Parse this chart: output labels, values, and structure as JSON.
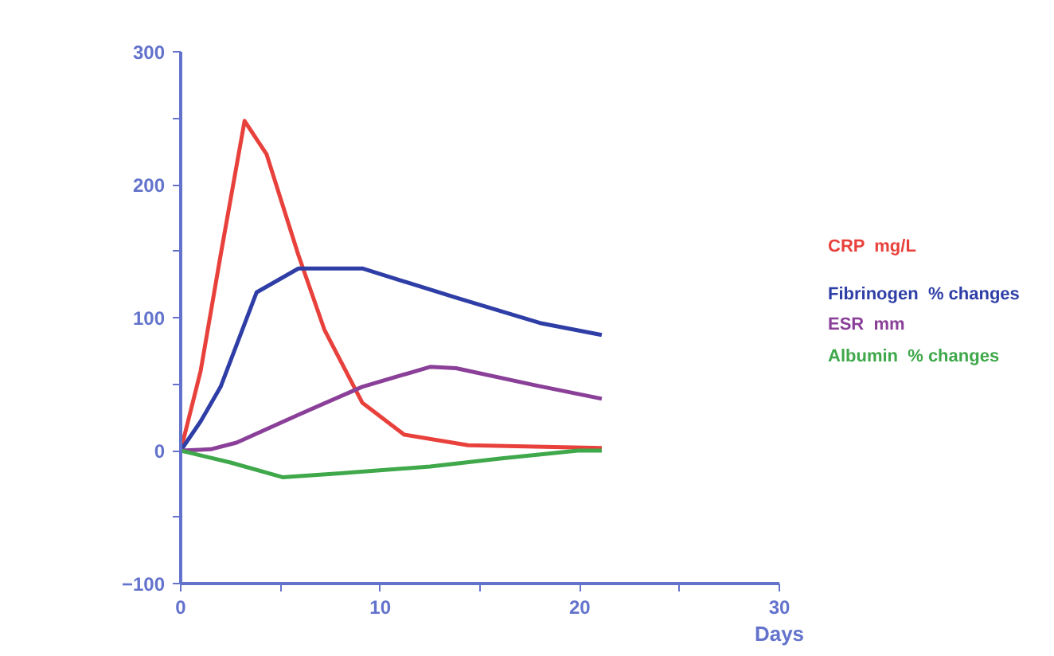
{
  "chart_data": {
    "type": "line",
    "xlabel": "Days",
    "xlim": [
      0,
      30
    ],
    "ylim": [
      -100,
      300
    ],
    "xticks": [
      0,
      {
        "value": 5,
        "label": null
      },
      10,
      {
        "value": 15,
        "label": null
      },
      20,
      {
        "value": 25,
        "label": null
      },
      30
    ],
    "yticks": [
      -100,
      {
        "value": -50,
        "label": null
      },
      0,
      {
        "value": 50,
        "label": null
      },
      100,
      {
        "value": 150,
        "label": null
      },
      200,
      {
        "value": 250,
        "label": null
      },
      300
    ],
    "grid": false,
    "marker": "none",
    "line_style": "solid",
    "series": [
      {
        "name": "CRP  mg/L",
        "color": "#e8413c",
        "x": [
          0,
          1,
          2,
          3.2,
          4.3,
          5.9,
          7.2,
          9.1,
          11.2,
          14.4,
          21.1
        ],
        "values": [
          0,
          60,
          147,
          248,
          223,
          147,
          91,
          36,
          12,
          4,
          2
        ]
      },
      {
        "name": "Fibrinogen  % changes",
        "color": "#2e3ea6",
        "x": [
          0,
          1,
          2,
          3.8,
          5.9,
          9.1,
          13.8,
          18,
          21.1
        ],
        "values": [
          0,
          22,
          48,
          119,
          137,
          137,
          115,
          96,
          87
        ]
      },
      {
        "name": "ESR  mm",
        "color": "#8a3f98",
        "x": [
          0,
          1.5,
          2.8,
          5.9,
          9.1,
          12.5,
          13.8,
          17.8,
          21.1
        ],
        "values": [
          0,
          1,
          6,
          27,
          48,
          63,
          62,
          49,
          39
        ]
      },
      {
        "name": "Albumin  % changes",
        "color": "#3fa84a",
        "x": [
          0,
          2.5,
          5.1,
          8,
          12.5,
          16,
          19.9,
          21.1
        ],
        "values": [
          0,
          -9,
          -20,
          -17,
          -12,
          -6,
          0,
          0
        ]
      }
    ]
  }
}
